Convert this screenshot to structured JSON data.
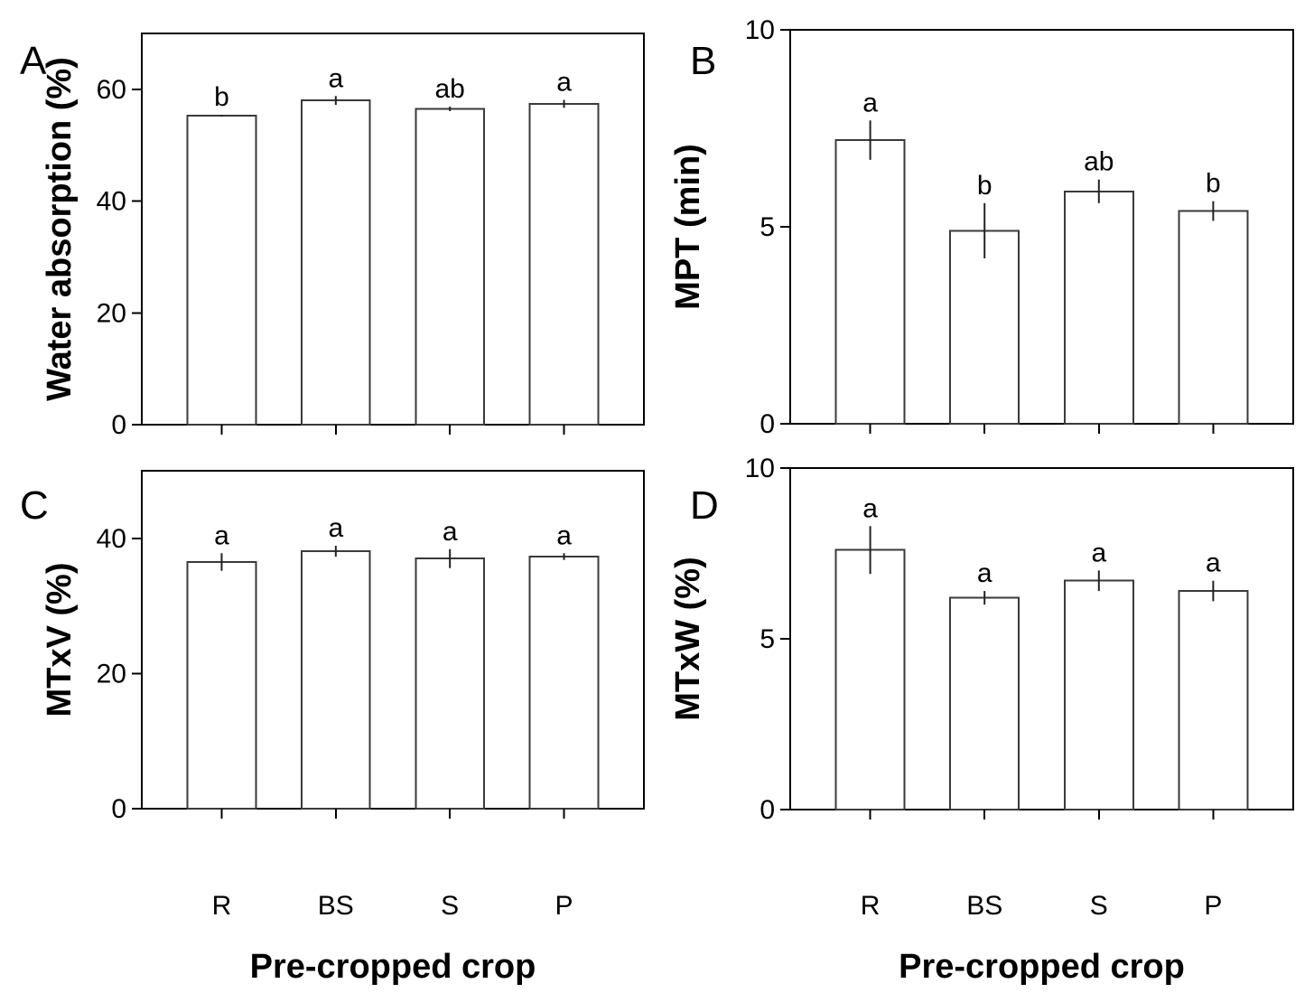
{
  "figure": {
    "title": "",
    "x_axis_label": "Pre-cropped crop",
    "categories": [
      "R",
      "BS",
      "S",
      "P"
    ],
    "colors": {
      "background": "#ffffff",
      "ink": "#000000",
      "bar_fill": "#ffffff",
      "bar_stroke": "#3a3a3a",
      "error_bar": "#222222"
    }
  },
  "chart_data": [
    {
      "panel": "A",
      "type": "bar",
      "title": "",
      "ylabel": "Water absorption (%)",
      "xlabel": "",
      "categories": [
        "R",
        "BS",
        "S",
        "P"
      ],
      "values": [
        55.3,
        58.0,
        56.5,
        57.4
      ],
      "errors": [
        0.15,
        0.8,
        0.4,
        0.7
      ],
      "sig_letters": [
        "b",
        "a",
        "ab",
        "a"
      ],
      "ylim": [
        0,
        70
      ],
      "yticks": [
        0,
        20,
        40,
        60
      ],
      "grid": false,
      "legend": "none",
      "show_x_tick_labels": false
    },
    {
      "panel": "B",
      "type": "bar",
      "title": "",
      "ylabel": "MPT (min)",
      "xlabel": "",
      "categories": [
        "R",
        "BS",
        "S",
        "P"
      ],
      "values": [
        7.2,
        4.9,
        5.9,
        5.4
      ],
      "errors": [
        0.5,
        0.7,
        0.3,
        0.25
      ],
      "sig_letters": [
        "a",
        "b",
        "ab",
        "b"
      ],
      "ylim": [
        0,
        10
      ],
      "yticks": [
        0,
        5,
        10
      ],
      "grid": false,
      "legend": "none",
      "show_x_tick_labels": false
    },
    {
      "panel": "C",
      "type": "bar",
      "title": "",
      "ylabel": "MTxV (%)",
      "xlabel": "Pre-cropped crop",
      "categories": [
        "R",
        "BS",
        "S",
        "P"
      ],
      "values": [
        36.5,
        38.1,
        37.0,
        37.3
      ],
      "errors": [
        1.3,
        0.8,
        1.4,
        0.5
      ],
      "sig_letters": [
        "a",
        "a",
        "a",
        "a"
      ],
      "ylim": [
        0,
        50
      ],
      "yticks": [
        0,
        20,
        40
      ],
      "grid": false,
      "legend": "none",
      "show_x_tick_labels": true
    },
    {
      "panel": "D",
      "type": "bar",
      "title": "",
      "ylabel": "MTxW (%)",
      "xlabel": "Pre-cropped crop",
      "categories": [
        "R",
        "BS",
        "S",
        "P"
      ],
      "values": [
        7.6,
        6.2,
        6.7,
        6.4
      ],
      "errors": [
        0.7,
        0.2,
        0.3,
        0.3
      ],
      "sig_letters": [
        "a",
        "a",
        "a",
        "a"
      ],
      "ylim": [
        0,
        10
      ],
      "yticks": [
        0,
        5,
        10
      ],
      "grid": false,
      "legend": "none",
      "show_x_tick_labels": true
    }
  ]
}
